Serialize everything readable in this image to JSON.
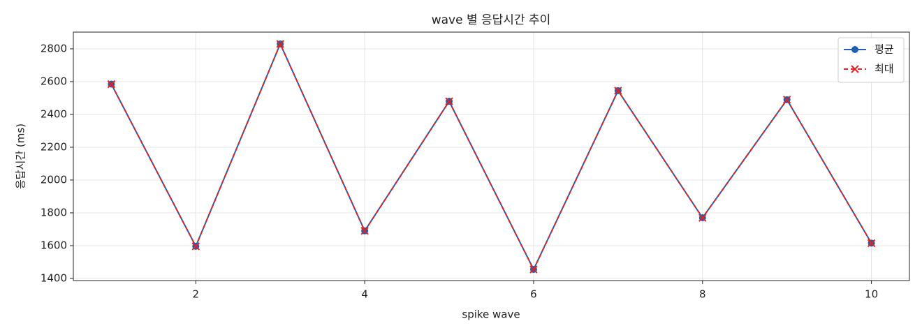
{
  "chart_data": {
    "type": "line",
    "title": "wave 별 응답시간 추이",
    "x_label": "spike wave",
    "y_label": "응답시간 (ms)",
    "x": [
      1,
      2,
      3,
      4,
      5,
      6,
      7,
      8,
      9,
      10
    ],
    "series": [
      {
        "name": "평균",
        "color": "#1f5fb4",
        "marker": "o",
        "linestyle": "solid",
        "values": [
          2585,
          1596,
          2830,
          1690,
          2480,
          1455,
          2545,
          1770,
          2490,
          1615
        ]
      },
      {
        "name": "최대",
        "color": "#d62728",
        "marker": "x",
        "linestyle": "dashed",
        "values": [
          2585,
          1596,
          2830,
          1690,
          2480,
          1455,
          2545,
          1770,
          2490,
          1615
        ]
      }
    ],
    "xlim": [
      0.55,
      10.45
    ],
    "ylim": [
      1387,
      2902
    ],
    "xticks": [
      2,
      4,
      6,
      8,
      10
    ],
    "yticks": [
      1400,
      1600,
      1800,
      2000,
      2200,
      2400,
      2600,
      2800
    ],
    "grid": true,
    "legend": "upper right"
  }
}
